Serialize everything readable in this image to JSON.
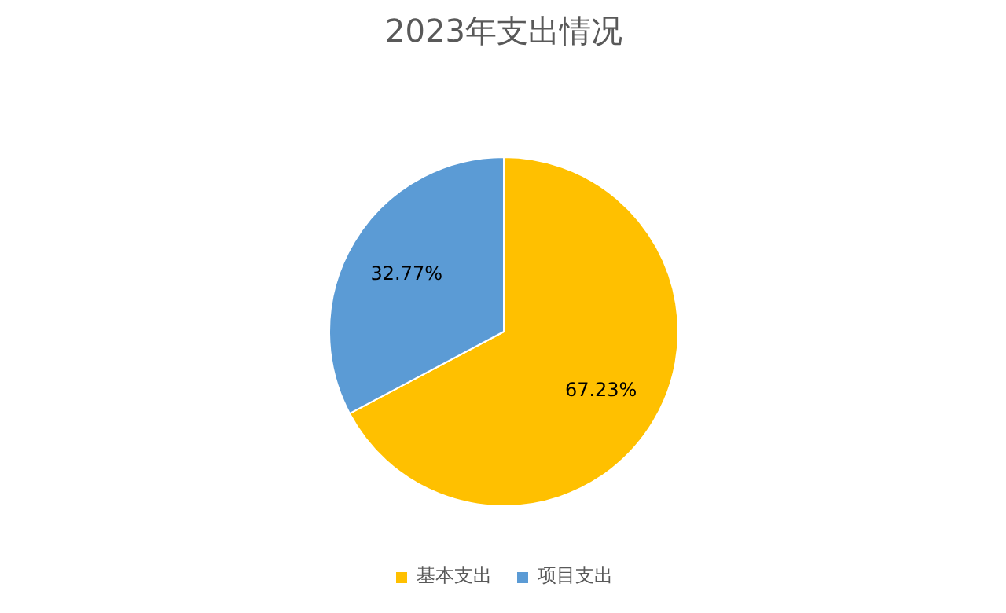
{
  "chart_data": {
    "type": "pie",
    "title": "2023年支出情况",
    "categories": [
      "基本支出",
      "项目支出"
    ],
    "values": [
      67.23,
      32.77
    ],
    "colors": [
      "#ffc000",
      "#5b9bd5"
    ],
    "value_labels": [
      "67.23%",
      "32.77%"
    ],
    "legend": "bottom"
  }
}
